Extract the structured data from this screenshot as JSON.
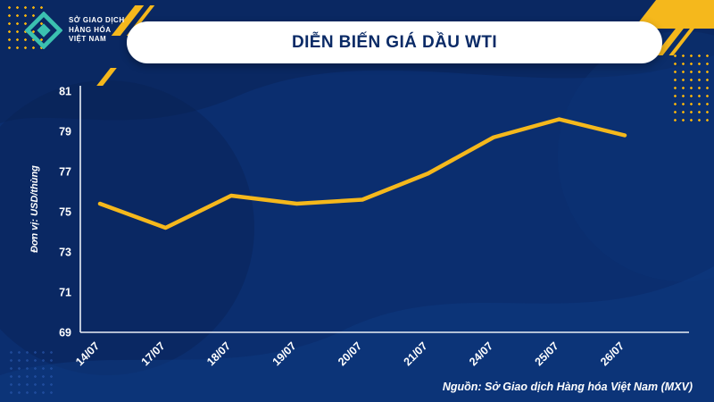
{
  "header": {
    "title": "DIỄN BIẾN GIÁ DẦU WTI"
  },
  "logo": {
    "lines": [
      "SỞ GIAO DỊCH",
      "HÀNG HÓA",
      "VIỆT NAM"
    ]
  },
  "chart_data": {
    "type": "line",
    "title": "DIỄN BIẾN GIÁ DẦU WTI",
    "categories": [
      "14/07",
      "17/07",
      "18/07",
      "19/07",
      "20/07",
      "21/07",
      "24/07",
      "25/07",
      "26/07"
    ],
    "values": [
      75.4,
      74.2,
      75.8,
      75.4,
      75.6,
      76.9,
      78.7,
      79.6,
      78.8
    ],
    "ylabel": "Đơn vị: USD/thùng",
    "ylim": [
      69,
      81
    ],
    "yticks": [
      69,
      71,
      73,
      75,
      77,
      79,
      81
    ],
    "line_color": "#F5B81C",
    "grid": false,
    "legend": "none"
  },
  "footer": {
    "source": "Nguồn: Sở Giao dịch Hàng hóa Việt Nam (MXV)"
  },
  "colors": {
    "background": "#0B2E6F",
    "accent_yellow": "#F5B81C",
    "title_navy": "#0A2A66",
    "logo_teal": "#3BC0B0",
    "axis_white": "#E9EEF6"
  }
}
